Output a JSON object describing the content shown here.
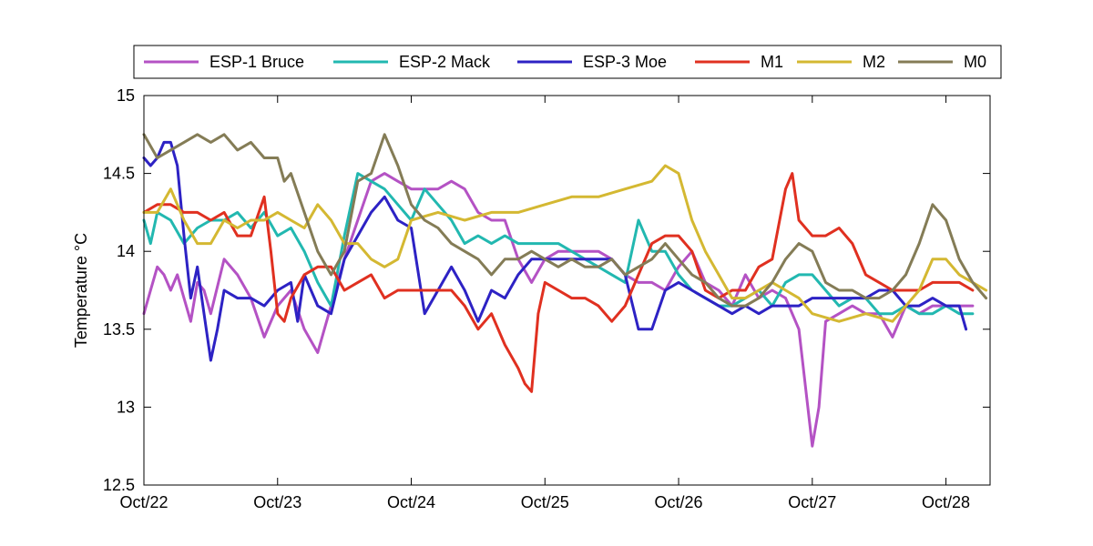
{
  "chart_data": {
    "type": "line",
    "title": "",
    "xlabel": "",
    "ylabel": "Temperature °C",
    "xlim": [
      "Oct/22",
      "Oct/28 +0.3d"
    ],
    "ylim": [
      12.5,
      15
    ],
    "grid": false,
    "legend_position": "top",
    "x_ticks": [
      "Oct/22",
      "Oct/23",
      "Oct/24",
      "Oct/25",
      "Oct/26",
      "Oct/27",
      "Oct/28"
    ],
    "y_ticks": [
      "12.5",
      "13",
      "13.5",
      "14",
      "14.5",
      "15"
    ],
    "series": [
      {
        "name": "ESP-1 Bruce",
        "color": "#b452c4",
        "x": [
          0,
          0.05,
          0.1,
          0.15,
          0.2,
          0.25,
          0.3,
          0.35,
          0.4,
          0.45,
          0.5,
          0.6,
          0.7,
          0.8,
          0.9,
          1.0,
          1.1,
          1.2,
          1.3,
          1.35,
          1.5,
          1.6,
          1.7,
          1.8,
          1.9,
          2.0,
          2.1,
          2.2,
          2.3,
          2.4,
          2.5,
          2.6,
          2.7,
          2.8,
          2.9,
          3.0,
          3.1,
          3.2,
          3.3,
          3.4,
          3.5,
          3.6,
          3.7,
          3.8,
          3.9,
          4.0,
          4.1,
          4.2,
          4.3,
          4.4,
          4.5,
          4.6,
          4.7,
          4.8,
          4.9,
          5.0,
          5.05,
          5.1,
          5.2,
          5.3,
          5.4,
          5.5,
          5.6,
          5.7,
          5.8,
          5.9,
          6.0,
          6.1,
          6.2
        ],
        "y": [
          13.6,
          13.75,
          13.9,
          13.85,
          13.75,
          13.85,
          13.7,
          13.55,
          13.8,
          13.75,
          13.6,
          13.95,
          13.85,
          13.7,
          13.45,
          13.65,
          13.75,
          13.5,
          13.35,
          13.5,
          13.95,
          14.2,
          14.45,
          14.5,
          14.45,
          14.4,
          14.4,
          14.4,
          14.45,
          14.4,
          14.25,
          14.2,
          14.2,
          13.95,
          13.8,
          13.95,
          14.0,
          14.0,
          14.0,
          14.0,
          13.95,
          13.85,
          13.8,
          13.8,
          13.75,
          13.9,
          14.0,
          13.8,
          13.75,
          13.65,
          13.85,
          13.7,
          13.75,
          13.7,
          13.5,
          12.75,
          13.0,
          13.55,
          13.6,
          13.65,
          13.6,
          13.6,
          13.45,
          13.65,
          13.6,
          13.65,
          13.65,
          13.65,
          13.65
        ]
      },
      {
        "name": "ESP-2 Mack",
        "color": "#22b8b0",
        "x": [
          0,
          0.05,
          0.1,
          0.2,
          0.3,
          0.4,
          0.5,
          0.6,
          0.7,
          0.8,
          0.9,
          1.0,
          1.1,
          1.2,
          1.3,
          1.4,
          1.5,
          1.6,
          1.7,
          1.8,
          1.9,
          2.0,
          2.1,
          2.2,
          2.3,
          2.4,
          2.5,
          2.6,
          2.7,
          2.8,
          2.9,
          3.0,
          3.1,
          3.2,
          3.3,
          3.4,
          3.5,
          3.6,
          3.7,
          3.8,
          3.9,
          4.0,
          4.1,
          4.2,
          4.3,
          4.4,
          4.5,
          4.6,
          4.7,
          4.8,
          4.9,
          5.0,
          5.1,
          5.2,
          5.3,
          5.4,
          5.5,
          5.6,
          5.7,
          5.8,
          5.9,
          6.0,
          6.1,
          6.2
        ],
        "y": [
          14.2,
          14.05,
          14.25,
          14.2,
          14.05,
          14.15,
          14.2,
          14.2,
          14.25,
          14.15,
          14.25,
          14.1,
          14.15,
          14.0,
          13.8,
          13.65,
          14.1,
          14.5,
          14.45,
          14.4,
          14.3,
          14.2,
          14.4,
          14.3,
          14.2,
          14.05,
          14.1,
          14.05,
          14.1,
          14.05,
          14.05,
          14.05,
          14.05,
          14.0,
          13.95,
          13.9,
          13.85,
          13.8,
          14.2,
          14.0,
          14.0,
          13.85,
          13.75,
          13.7,
          13.65,
          13.65,
          13.7,
          13.75,
          13.65,
          13.8,
          13.85,
          13.85,
          13.75,
          13.65,
          13.7,
          13.7,
          13.6,
          13.6,
          13.65,
          13.6,
          13.6,
          13.65,
          13.6,
          13.6
        ]
      },
      {
        "name": "ESP-3 Moe",
        "color": "#2d22c4",
        "x": [
          0,
          0.05,
          0.1,
          0.15,
          0.2,
          0.25,
          0.3,
          0.35,
          0.4,
          0.45,
          0.5,
          0.55,
          0.6,
          0.7,
          0.8,
          0.9,
          1.0,
          1.1,
          1.15,
          1.2,
          1.3,
          1.4,
          1.5,
          1.6,
          1.7,
          1.8,
          1.9,
          2.0,
          2.1,
          2.2,
          2.3,
          2.4,
          2.5,
          2.6,
          2.7,
          2.8,
          2.9,
          3.0,
          3.1,
          3.2,
          3.3,
          3.4,
          3.5,
          3.6,
          3.7,
          3.8,
          3.9,
          4.0,
          4.1,
          4.2,
          4.3,
          4.4,
          4.5,
          4.6,
          4.7,
          4.8,
          4.9,
          5.0,
          5.1,
          5.2,
          5.3,
          5.4,
          5.5,
          5.6,
          5.7,
          5.8,
          5.9,
          6.0,
          6.1,
          6.15
        ],
        "y": [
          14.6,
          14.55,
          14.6,
          14.7,
          14.7,
          14.55,
          14.1,
          13.7,
          13.9,
          13.6,
          13.3,
          13.5,
          13.75,
          13.7,
          13.7,
          13.65,
          13.75,
          13.8,
          13.55,
          13.85,
          13.65,
          13.6,
          13.95,
          14.1,
          14.25,
          14.35,
          14.2,
          14.15,
          13.6,
          13.75,
          13.9,
          13.75,
          13.55,
          13.75,
          13.7,
          13.85,
          13.95,
          13.95,
          13.95,
          13.95,
          13.95,
          13.95,
          13.95,
          13.85,
          13.5,
          13.5,
          13.75,
          13.8,
          13.75,
          13.7,
          13.65,
          13.6,
          13.65,
          13.6,
          13.65,
          13.65,
          13.65,
          13.7,
          13.7,
          13.7,
          13.7,
          13.7,
          13.75,
          13.75,
          13.65,
          13.65,
          13.7,
          13.65,
          13.65,
          13.5
        ]
      },
      {
        "name": "M1",
        "color": "#e03020",
        "x": [
          0,
          0.1,
          0.2,
          0.3,
          0.4,
          0.5,
          0.6,
          0.7,
          0.8,
          0.9,
          0.95,
          1.0,
          1.05,
          1.1,
          1.2,
          1.3,
          1.4,
          1.5,
          1.6,
          1.7,
          1.8,
          1.9,
          2.0,
          2.1,
          2.2,
          2.3,
          2.4,
          2.5,
          2.6,
          2.7,
          2.8,
          2.85,
          2.9,
          2.95,
          3.0,
          3.1,
          3.2,
          3.3,
          3.4,
          3.5,
          3.6,
          3.7,
          3.8,
          3.9,
          4.0,
          4.1,
          4.2,
          4.3,
          4.4,
          4.5,
          4.6,
          4.7,
          4.8,
          4.85,
          4.9,
          5.0,
          5.1,
          5.2,
          5.3,
          5.4,
          5.5,
          5.6,
          5.7,
          5.8,
          5.9,
          6.0,
          6.1,
          6.2
        ],
        "y": [
          14.25,
          14.3,
          14.3,
          14.25,
          14.25,
          14.2,
          14.25,
          14.1,
          14.1,
          14.35,
          14.0,
          13.6,
          13.55,
          13.7,
          13.85,
          13.9,
          13.9,
          13.75,
          13.8,
          13.85,
          13.7,
          13.75,
          13.75,
          13.75,
          13.75,
          13.75,
          13.65,
          13.5,
          13.6,
          13.4,
          13.25,
          13.15,
          13.1,
          13.6,
          13.8,
          13.75,
          13.7,
          13.7,
          13.65,
          13.55,
          13.65,
          13.85,
          14.05,
          14.1,
          14.1,
          14.0,
          13.75,
          13.7,
          13.75,
          13.75,
          13.9,
          13.95,
          14.4,
          14.5,
          14.2,
          14.1,
          14.1,
          14.15,
          14.05,
          13.85,
          13.8,
          13.75,
          13.75,
          13.75,
          13.8,
          13.8,
          13.8,
          13.75
        ]
      },
      {
        "name": "M2",
        "color": "#d4b832",
        "x": [
          0,
          0.1,
          0.2,
          0.3,
          0.4,
          0.5,
          0.6,
          0.7,
          0.8,
          0.9,
          1.0,
          1.1,
          1.2,
          1.3,
          1.4,
          1.5,
          1.6,
          1.7,
          1.8,
          1.9,
          2.0,
          2.2,
          2.4,
          2.6,
          2.8,
          3.0,
          3.2,
          3.4,
          3.6,
          3.8,
          3.9,
          4.0,
          4.1,
          4.2,
          4.3,
          4.4,
          4.5,
          4.6,
          4.7,
          4.8,
          4.9,
          5.0,
          5.2,
          5.4,
          5.6,
          5.8,
          5.9,
          6.0,
          6.1,
          6.2,
          6.3
        ],
        "y": [
          14.25,
          14.25,
          14.4,
          14.2,
          14.05,
          14.05,
          14.2,
          14.15,
          14.2,
          14.2,
          14.25,
          14.2,
          14.15,
          14.3,
          14.2,
          14.05,
          14.05,
          13.95,
          13.9,
          13.95,
          14.2,
          14.25,
          14.2,
          14.25,
          14.25,
          14.3,
          14.35,
          14.35,
          14.4,
          14.45,
          14.55,
          14.5,
          14.2,
          14.0,
          13.85,
          13.7,
          13.7,
          13.75,
          13.8,
          13.75,
          13.7,
          13.6,
          13.55,
          13.6,
          13.55,
          13.75,
          13.95,
          13.95,
          13.85,
          13.8,
          13.75
        ]
      },
      {
        "name": "M0",
        "color": "#847c56",
        "x": [
          0,
          0.1,
          0.2,
          0.3,
          0.4,
          0.5,
          0.6,
          0.7,
          0.8,
          0.9,
          1.0,
          1.05,
          1.1,
          1.2,
          1.3,
          1.4,
          1.5,
          1.6,
          1.7,
          1.8,
          1.9,
          2.0,
          2.1,
          2.2,
          2.3,
          2.4,
          2.5,
          2.6,
          2.7,
          2.8,
          2.9,
          3.0,
          3.1,
          3.2,
          3.3,
          3.4,
          3.5,
          3.6,
          3.7,
          3.8,
          3.9,
          4.0,
          4.1,
          4.2,
          4.3,
          4.4,
          4.5,
          4.6,
          4.7,
          4.8,
          4.9,
          5.0,
          5.1,
          5.2,
          5.3,
          5.4,
          5.5,
          5.6,
          5.7,
          5.8,
          5.9,
          6.0,
          6.1,
          6.2,
          6.3
        ],
        "y": [
          14.75,
          14.6,
          14.65,
          14.7,
          14.75,
          14.7,
          14.75,
          14.65,
          14.7,
          14.6,
          14.6,
          14.45,
          14.5,
          14.25,
          14.0,
          13.85,
          14.0,
          14.45,
          14.5,
          14.75,
          14.55,
          14.3,
          14.2,
          14.15,
          14.05,
          14.0,
          13.95,
          13.85,
          13.95,
          13.95,
          14.0,
          13.95,
          13.9,
          13.95,
          13.9,
          13.9,
          13.95,
          13.85,
          13.9,
          13.95,
          14.05,
          13.95,
          13.85,
          13.8,
          13.7,
          13.65,
          13.65,
          13.7,
          13.8,
          13.95,
          14.05,
          14.0,
          13.8,
          13.75,
          13.75,
          13.7,
          13.7,
          13.75,
          13.85,
          14.05,
          14.3,
          14.2,
          13.95,
          13.8,
          13.7
        ]
      }
    ]
  }
}
